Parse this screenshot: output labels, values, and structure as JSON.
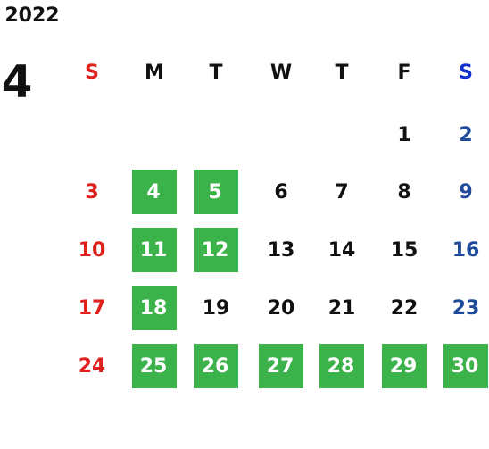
{
  "year": "2022",
  "month": 4,
  "weekdays": [
    "S",
    "M",
    "T",
    "W",
    "T",
    "F",
    "S"
  ],
  "highlight_color": "#3bb34a",
  "weeks": [
    [
      null,
      null,
      null,
      null,
      null,
      {
        "day": 1,
        "highlight": false
      },
      {
        "day": 2,
        "highlight": false
      }
    ],
    [
      {
        "day": 3,
        "highlight": false
      },
      {
        "day": 4,
        "highlight": true
      },
      {
        "day": 5,
        "highlight": true
      },
      {
        "day": 6,
        "highlight": false
      },
      {
        "day": 7,
        "highlight": false
      },
      {
        "day": 8,
        "highlight": false
      },
      {
        "day": 9,
        "highlight": false
      }
    ],
    [
      {
        "day": 10,
        "highlight": false
      },
      {
        "day": 11,
        "highlight": true
      },
      {
        "day": 12,
        "highlight": true
      },
      {
        "day": 13,
        "highlight": false
      },
      {
        "day": 14,
        "highlight": false
      },
      {
        "day": 15,
        "highlight": false
      },
      {
        "day": 16,
        "highlight": false
      }
    ],
    [
      {
        "day": 17,
        "highlight": false
      },
      {
        "day": 18,
        "highlight": true
      },
      {
        "day": 19,
        "highlight": false
      },
      {
        "day": 20,
        "highlight": false
      },
      {
        "day": 21,
        "highlight": false
      },
      {
        "day": 22,
        "highlight": false
      },
      {
        "day": 23,
        "highlight": false
      }
    ],
    [
      {
        "day": 24,
        "highlight": false
      },
      {
        "day": 25,
        "highlight": true
      },
      {
        "day": 26,
        "highlight": true
      },
      {
        "day": 27,
        "highlight": true
      },
      {
        "day": 28,
        "highlight": true
      },
      {
        "day": 29,
        "highlight": true
      },
      {
        "day": 30,
        "highlight": true
      }
    ]
  ]
}
